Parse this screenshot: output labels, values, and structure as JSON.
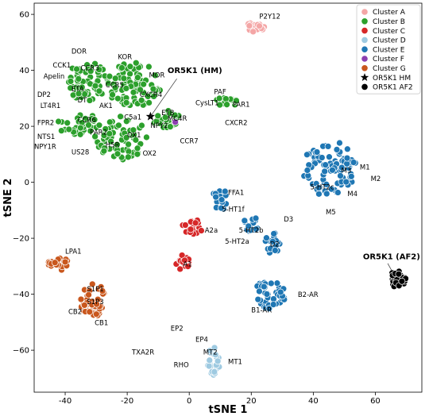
{
  "chart_data": {
    "type": "scatter",
    "xlabel": "tSNE 1",
    "ylabel": "tSNE 2",
    "xlim": [
      -50,
      75
    ],
    "ylim": [
      -75,
      64
    ],
    "xticks": [
      "-40",
      "-20",
      "0",
      "20",
      "40",
      "60"
    ],
    "xtick_values": [
      -40,
      -20,
      0,
      20,
      40,
      60
    ],
    "yticks": [
      "60",
      "40",
      "20",
      "0",
      "−20",
      "−40",
      "−60"
    ],
    "ytick_values": [
      60,
      40,
      20,
      0,
      -20,
      -40,
      -60
    ],
    "legend_position": "top-right",
    "series": [
      {
        "name": "Cluster A",
        "color": "#f4a6a6",
        "marker": "circle",
        "clusters": [
          {
            "cx": 21,
            "cy": 55.5,
            "rx": 3.3,
            "ry": 1.8,
            "n": 22
          }
        ]
      },
      {
        "name": "Cluster B",
        "color": "#2ca02c",
        "marker": "circle",
        "clusters": [
          {
            "cx": -33,
            "cy": 36,
            "rx": 7,
            "ry": 7,
            "n": 70
          },
          {
            "cx": -18,
            "cy": 35,
            "rx": 9,
            "ry": 8,
            "n": 80
          },
          {
            "cx": -36,
            "cy": 21,
            "rx": 7,
            "ry": 4,
            "n": 35
          },
          {
            "cx": -22,
            "cy": 16,
            "rx": 9,
            "ry": 8,
            "n": 70
          },
          {
            "cx": -7,
            "cy": 23,
            "rx": 5,
            "ry": 3.5,
            "n": 22
          },
          {
            "cx": 12,
            "cy": 29,
            "rx": 3.5,
            "ry": 2.2,
            "n": 18
          }
        ]
      },
      {
        "name": "Cluster C",
        "color": "#d62728",
        "marker": "circle",
        "clusters": [
          {
            "cx": 1,
            "cy": -16,
            "rx": 3.2,
            "ry": 3,
            "n": 20
          },
          {
            "cx": -2,
            "cy": -28.5,
            "rx": 2.5,
            "ry": 3,
            "n": 16
          }
        ]
      },
      {
        "name": "Cluster D",
        "color": "#9ecae1",
        "marker": "circle",
        "clusters": [
          {
            "cx": 8,
            "cy": -64,
            "rx": 2.2,
            "ry": 5,
            "n": 22
          }
        ]
      },
      {
        "name": "Cluster E",
        "color": "#1f77b4",
        "marker": "circle",
        "clusters": [
          {
            "cx": 45,
            "cy": 5,
            "rx": 9,
            "ry": 10,
            "n": 95
          },
          {
            "cx": 10,
            "cy": -6,
            "rx": 2.5,
            "ry": 4,
            "n": 18
          },
          {
            "cx": 20,
            "cy": -15,
            "rx": 2.5,
            "ry": 3,
            "n": 16
          },
          {
            "cx": 27,
            "cy": -22,
            "rx": 2.5,
            "ry": 4,
            "n": 18
          },
          {
            "cx": 26,
            "cy": -40,
            "rx": 5,
            "ry": 5.5,
            "n": 45
          }
        ]
      },
      {
        "name": "Cluster F",
        "color": "#8c3fb0",
        "marker": "circle",
        "points": [
          [
            -4.5,
            21.5
          ]
        ]
      },
      {
        "name": "Cluster G",
        "color": "#c9571d",
        "marker": "circle",
        "clusters": [
          {
            "cx": -42,
            "cy": -29.5,
            "rx": 3.8,
            "ry": 2.6,
            "n": 20
          },
          {
            "cx": -31,
            "cy": -42,
            "rx": 4.2,
            "ry": 6,
            "n": 45
          }
        ]
      },
      {
        "name": "OR5K1 HM",
        "color": "#000000",
        "marker": "star",
        "points": [
          [
            -12.5,
            23.5
          ]
        ]
      },
      {
        "name": "OR5K1 AF2",
        "color": "#000000",
        "marker": "circle",
        "clusters": [
          {
            "cx": 67,
            "cy": -34.5,
            "rx": 2.8,
            "ry": 3,
            "n": 22
          }
        ]
      }
    ],
    "annotations": [
      {
        "text": "P2Y12",
        "x": 26,
        "y": 58.5,
        "anchor": "middle"
      },
      {
        "text": "DOR",
        "x": -38,
        "y": 46,
        "anchor": "start"
      },
      {
        "text": "KOR",
        "x": -23,
        "y": 44,
        "anchor": "start"
      },
      {
        "text": "CCK1",
        "x": -44,
        "y": 41,
        "anchor": "start"
      },
      {
        "text": "CCR3",
        "x": -35,
        "y": 40,
        "anchor": "start"
      },
      {
        "text": "MOR",
        "x": -13,
        "y": 37.5,
        "anchor": "start"
      },
      {
        "text": "Apelin",
        "x": -47,
        "y": 37,
        "anchor": "start"
      },
      {
        "text": "CCR5",
        "x": -27,
        "y": 34,
        "anchor": "start"
      },
      {
        "text": "ETA",
        "x": -38,
        "y": 32.5,
        "anchor": "start"
      },
      {
        "text": "CXCR4",
        "x": -16,
        "y": 30.5,
        "anchor": "start"
      },
      {
        "text": "DP2",
        "x": -49,
        "y": 30.5,
        "anchor": "start"
      },
      {
        "text": "DT",
        "x": -36,
        "y": 28.5,
        "anchor": "start"
      },
      {
        "text": "LT4R1",
        "x": -48,
        "y": 26.5,
        "anchor": "start"
      },
      {
        "text": "AK1",
        "x": -29,
        "y": 26.5,
        "anchor": "start"
      },
      {
        "text": "C5a1",
        "x": -21,
        "y": 22.5,
        "anchor": "start"
      },
      {
        "text": "CCR6",
        "x": -36,
        "y": 21.5,
        "anchor": "start"
      },
      {
        "text": "FPR2",
        "x": -49,
        "y": 20.5,
        "anchor": "start"
      },
      {
        "text": "ETB",
        "x": -9,
        "y": 24,
        "anchor": "start"
      },
      {
        "text": "NPY2",
        "x": -12.5,
        "y": 19.5,
        "anchor": "start"
      },
      {
        "text": "MC4R",
        "x": -7,
        "y": 22,
        "anchor": "start"
      },
      {
        "text": "PAR2",
        "x": -32,
        "y": 17,
        "anchor": "start"
      },
      {
        "text": "NTS1",
        "x": -49,
        "y": 15.5,
        "anchor": "start"
      },
      {
        "text": "OX1",
        "x": -20,
        "y": 16,
        "anchor": "start"
      },
      {
        "text": "H5R",
        "x": -27,
        "y": 12.5,
        "anchor": "start"
      },
      {
        "text": "NPY1R",
        "x": -50,
        "y": 12,
        "anchor": "start"
      },
      {
        "text": "CCR7",
        "x": -3,
        "y": 14,
        "anchor": "start"
      },
      {
        "text": "US28",
        "x": -38,
        "y": 10,
        "anchor": "start"
      },
      {
        "text": "OX2",
        "x": -15,
        "y": 9.5,
        "anchor": "start"
      },
      {
        "text": "PAF",
        "x": 8,
        "y": 31.5,
        "anchor": "start"
      },
      {
        "text": "CysLT1",
        "x": 2,
        "y": 27.5,
        "anchor": "start"
      },
      {
        "text": "PAR1",
        "x": 14,
        "y": 27,
        "anchor": "start"
      },
      {
        "text": "CXCR2",
        "x": 11.5,
        "y": 20.5,
        "anchor": "start"
      },
      {
        "text": "M1",
        "x": 55,
        "y": 4.5,
        "anchor": "start"
      },
      {
        "text": "M3",
        "x": 49,
        "y": 3.5,
        "anchor": "start"
      },
      {
        "text": "M2",
        "x": 58.5,
        "y": 0.5,
        "anchor": "start"
      },
      {
        "text": "5-HT2c",
        "x": 39,
        "y": -2.5,
        "anchor": "start"
      },
      {
        "text": "M4",
        "x": 51,
        "y": -5,
        "anchor": "start"
      },
      {
        "text": "M5",
        "x": 44,
        "y": -11.5,
        "anchor": "start"
      },
      {
        "text": "FFA1",
        "x": 12.5,
        "y": -4.5,
        "anchor": "start"
      },
      {
        "text": "5-HT1f",
        "x": 10.5,
        "y": -10.5,
        "anchor": "start"
      },
      {
        "text": "D3",
        "x": 30.5,
        "y": -14,
        "anchor": "start"
      },
      {
        "text": "5-HT2b",
        "x": 16,
        "y": -18,
        "anchor": "start"
      },
      {
        "text": "A2a",
        "x": 5,
        "y": -18,
        "anchor": "start"
      },
      {
        "text": "5-HT2a",
        "x": 11.5,
        "y": -22,
        "anchor": "start"
      },
      {
        "text": "D2",
        "x": 26,
        "y": -23,
        "anchor": "start"
      },
      {
        "text": "A1",
        "x": -2,
        "y": -30,
        "anchor": "start"
      },
      {
        "text": "LPA1",
        "x": -40,
        "y": -25.5,
        "anchor": "start"
      },
      {
        "text": "S1P1",
        "x": -33,
        "y": -39,
        "anchor": "start"
      },
      {
        "text": "S1P3",
        "x": -33,
        "y": -43.5,
        "anchor": "start"
      },
      {
        "text": "CB2",
        "x": -39,
        "y": -47,
        "anchor": "start"
      },
      {
        "text": "CB1",
        "x": -30.5,
        "y": -51,
        "anchor": "start"
      },
      {
        "text": "B2-AR",
        "x": 35,
        "y": -41,
        "anchor": "start"
      },
      {
        "text": "B1-AR",
        "x": 20,
        "y": -46.5,
        "anchor": "start"
      },
      {
        "text": "EP2",
        "x": -6,
        "y": -53,
        "anchor": "start"
      },
      {
        "text": "EP4",
        "x": 2,
        "y": -57,
        "anchor": "start"
      },
      {
        "text": "TXA2R",
        "x": -18.5,
        "y": -61.5,
        "anchor": "start"
      },
      {
        "text": "MT2",
        "x": 4.5,
        "y": -61.5,
        "anchor": "start"
      },
      {
        "text": "MT1",
        "x": 12.5,
        "y": -65,
        "anchor": "start"
      },
      {
        "text": "RHO",
        "x": -5,
        "y": -66,
        "anchor": "start"
      }
    ],
    "bold_annotations": [
      {
        "text": "OR5K1 (HM)",
        "x": -7,
        "y": 39,
        "anchor": "start"
      },
      {
        "text": "OR5K1 (AF2)",
        "x": 56,
        "y": -27.5,
        "anchor": "start"
      }
    ]
  }
}
